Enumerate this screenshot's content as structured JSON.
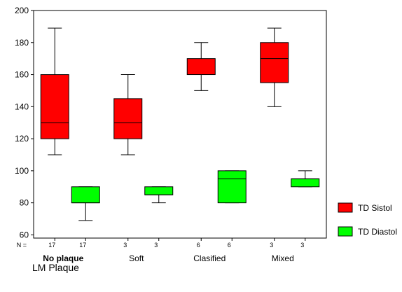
{
  "chart_data": {
    "type": "boxplot",
    "xlabel": "LM Plaque",
    "ylabel": "",
    "ylim": [
      58,
      200
    ],
    "yticks": [
      60,
      80,
      100,
      120,
      140,
      160,
      180,
      200
    ],
    "n_prefix": "N =",
    "legend_position": "right",
    "categories": [
      {
        "label": "No plaque",
        "bold": true
      },
      {
        "label": "Soft",
        "bold": false
      },
      {
        "label": "Clasified",
        "bold": false
      },
      {
        "label": "Mixed",
        "bold": false
      }
    ],
    "series": [
      {
        "name": "TD Sistol",
        "color": "#ff0000",
        "n": [
          "17",
          "3",
          "6",
          "3"
        ],
        "boxes": [
          {
            "min": 110,
            "q1": 120,
            "median": 130,
            "q3": 160,
            "max": 189
          },
          {
            "min": 110,
            "q1": 120,
            "median": 130,
            "q3": 145,
            "max": 160
          },
          {
            "min": 150,
            "q1": 160,
            "median": 160,
            "q3": 170,
            "max": 180
          },
          {
            "min": 140,
            "q1": 155,
            "median": 170,
            "q3": 180,
            "max": 189
          }
        ]
      },
      {
        "name": "TD Diastol",
        "color": "#00ff00",
        "n": [
          "17",
          "3",
          "6",
          "3"
        ],
        "boxes": [
          {
            "min": 69,
            "q1": 80,
            "median": 80,
            "q3": 90,
            "max": 90
          },
          {
            "min": 80,
            "q1": 85,
            "median": 85,
            "q3": 90,
            "max": 90
          },
          {
            "min": 80,
            "q1": 80,
            "median": 95,
            "q3": 100,
            "max": 100
          },
          {
            "min": 90,
            "q1": 90,
            "median": 95,
            "q3": 95,
            "max": 100
          }
        ]
      }
    ]
  }
}
